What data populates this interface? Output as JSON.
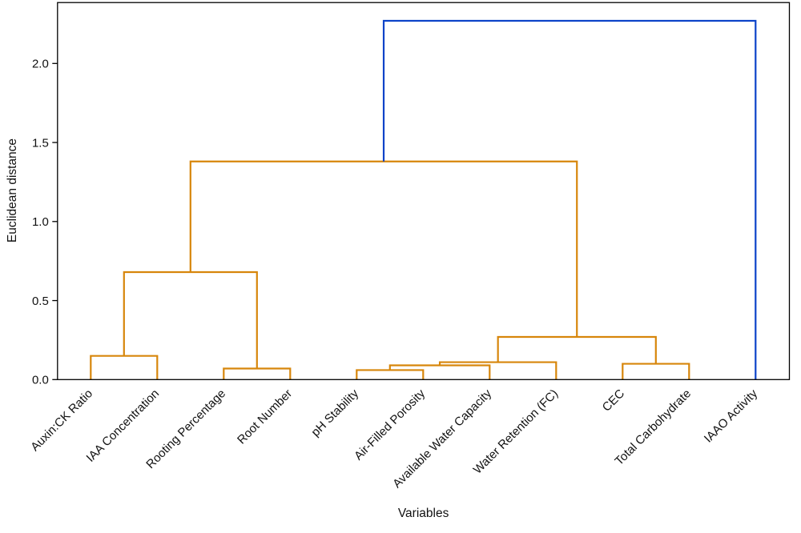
{
  "chart_data": {
    "type": "dendrogram",
    "title": "",
    "xlabel": "Variables",
    "ylabel": "Euclidean distance",
    "grid": false,
    "legend": null,
    "ylim": [
      0.0,
      2.39
    ],
    "yticks": [
      {
        "value": 0.0,
        "label": "0.0"
      },
      {
        "value": 0.5,
        "label": "0.5"
      },
      {
        "value": 1.0,
        "label": "1.0"
      },
      {
        "value": 1.5,
        "label": "1.5"
      },
      {
        "value": 2.0,
        "label": "2.0"
      }
    ],
    "leaves": [
      {
        "label": "Auxin:CK Ratio"
      },
      {
        "label": "IAA Concentration"
      },
      {
        "label": "Rooting Percentage"
      },
      {
        "label": "Root Number"
      },
      {
        "label": "pH Stability"
      },
      {
        "label": "Air-Filled Porosity"
      },
      {
        "label": "Available Water Capacity"
      },
      {
        "label": "Water Retention (FC)"
      },
      {
        "label": "CEC"
      },
      {
        "label": "Total Carbohydrate"
      },
      {
        "label": "IAAO Activity"
      }
    ],
    "merges": [
      {
        "id": "M0",
        "left": "L0",
        "right": "L1",
        "height": 0.15,
        "color": "orange"
      },
      {
        "id": "M1",
        "left": "L2",
        "right": "L3",
        "height": 0.07,
        "color": "orange"
      },
      {
        "id": "M2",
        "left": "M0",
        "right": "M1",
        "height": 0.68,
        "color": "orange"
      },
      {
        "id": "M3",
        "left": "L4",
        "right": "L5",
        "height": 0.06,
        "color": "orange"
      },
      {
        "id": "M4",
        "left": "M3",
        "right": "L6",
        "height": 0.09,
        "color": "orange"
      },
      {
        "id": "M5",
        "left": "M4",
        "right": "L7",
        "height": 0.11,
        "color": "orange"
      },
      {
        "id": "M6",
        "left": "L8",
        "right": "L9",
        "height": 0.1,
        "color": "orange"
      },
      {
        "id": "M7",
        "left": "M5",
        "right": "M6",
        "height": 0.27,
        "color": "orange"
      },
      {
        "id": "M8",
        "left": "M2",
        "right": "M7",
        "height": 1.38,
        "color": "orange"
      },
      {
        "id": "M9",
        "left": "M8",
        "right": "L10",
        "height": 2.27,
        "color": "blue"
      }
    ],
    "colors": {
      "orange": "#d7860b",
      "blue": "#0c43c9",
      "axis": "#000000",
      "text": "#111111"
    }
  }
}
